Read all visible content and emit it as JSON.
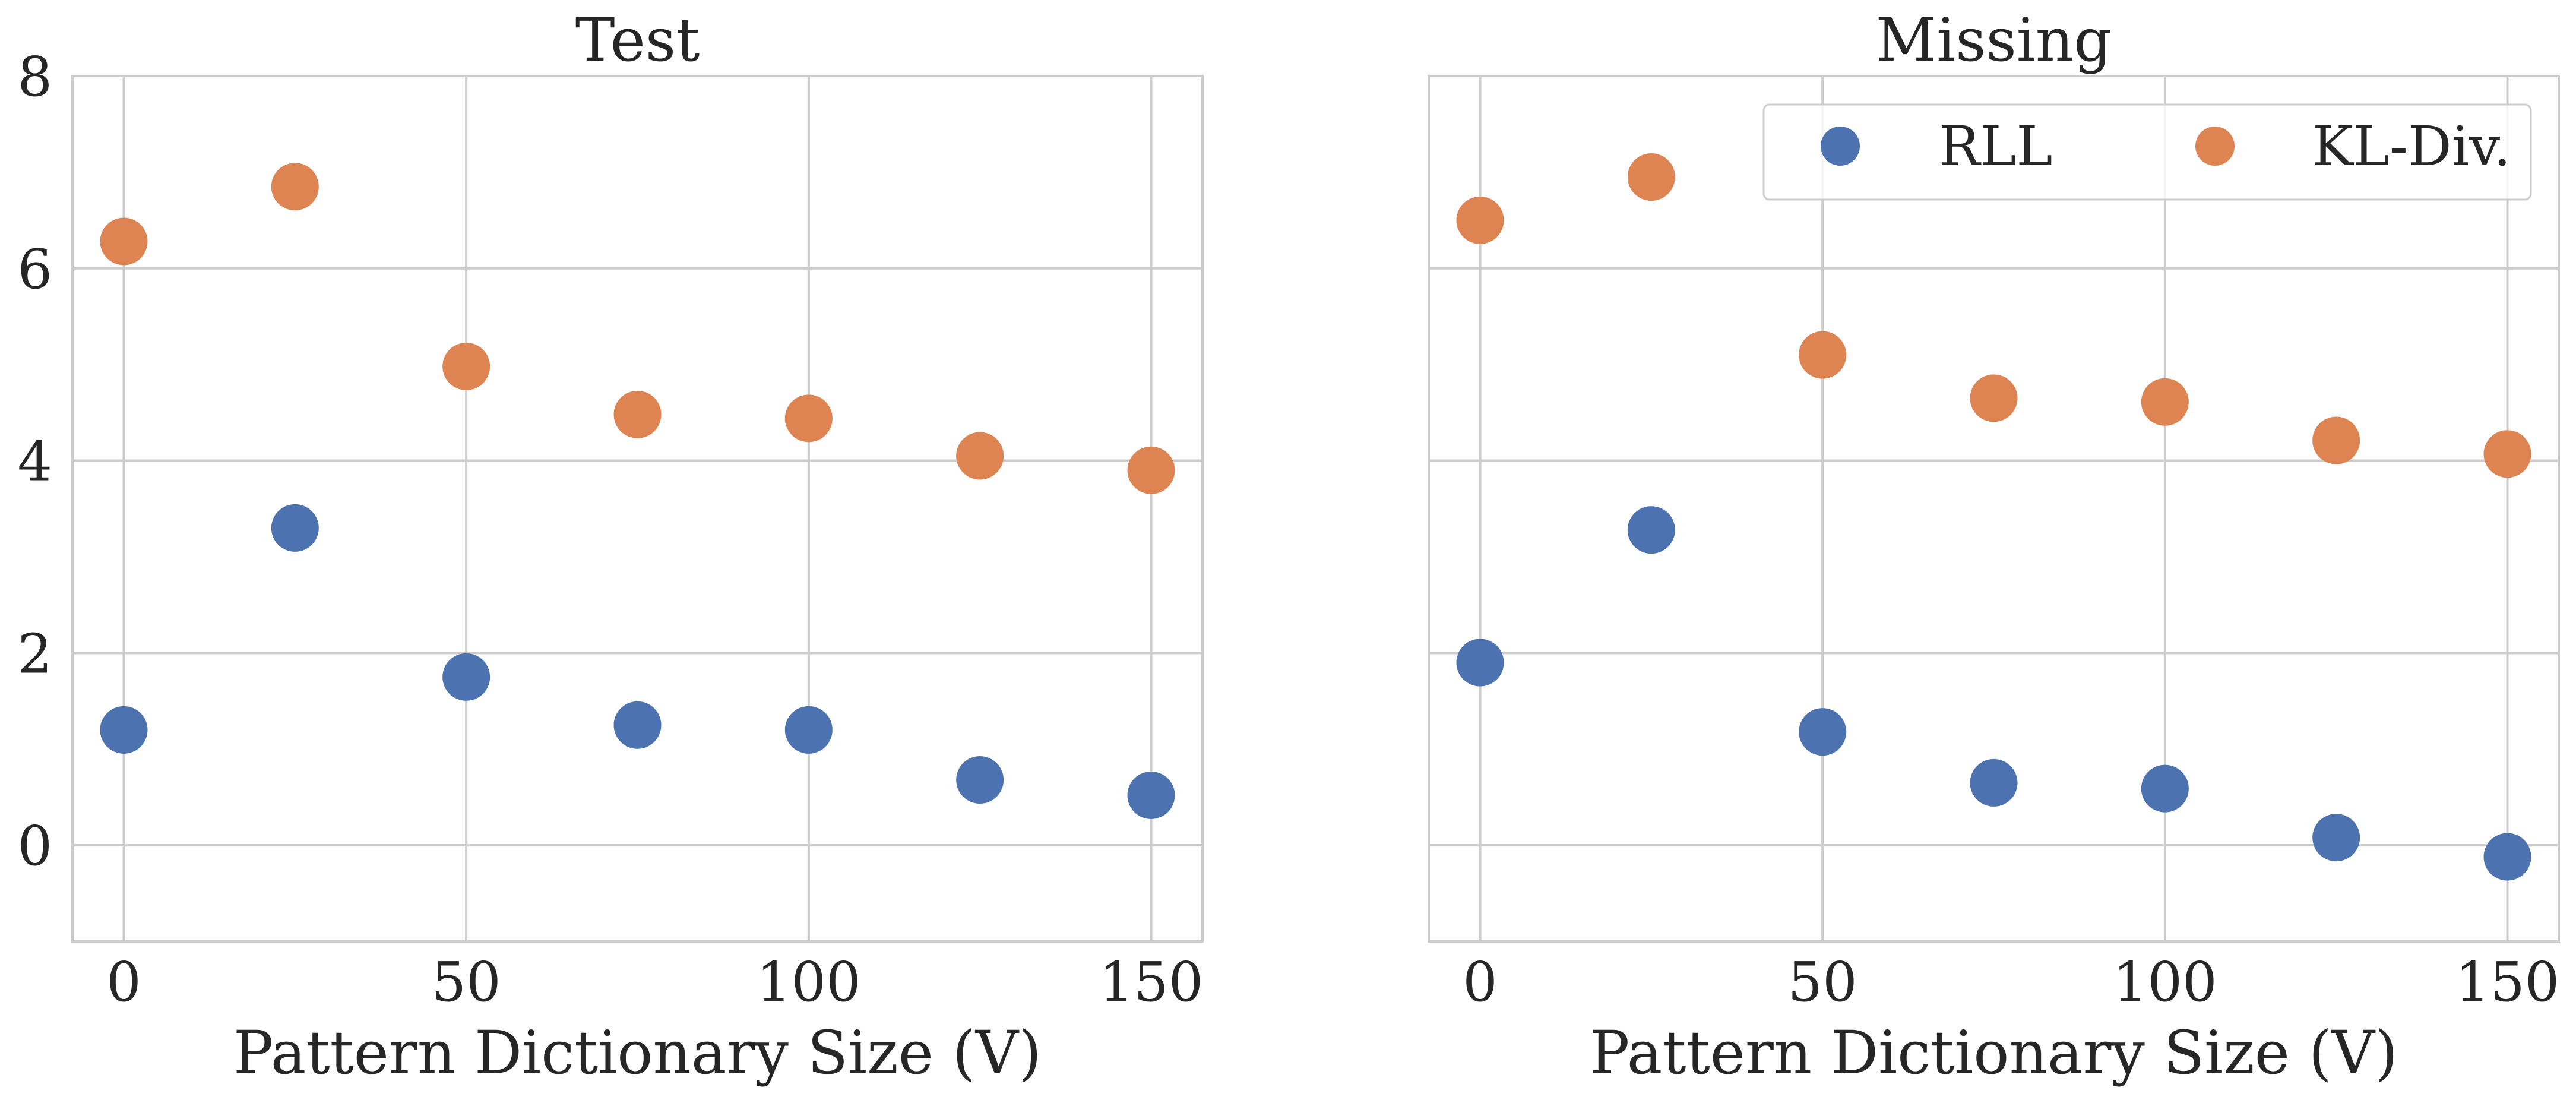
{
  "chart_data": [
    {
      "type": "scatter",
      "title": "Test",
      "xlabel": "Pattern Dictionary Size (V)",
      "ylabel": "",
      "xlim": [
        -7.5,
        157.5
      ],
      "ylim": [
        -1,
        8
      ],
      "xticks": [
        0,
        50,
        100,
        150
      ],
      "yticks": [
        0,
        2,
        4,
        6,
        8
      ],
      "grid": true,
      "x": [
        0,
        25,
        50,
        75,
        100,
        125,
        150
      ],
      "series": [
        {
          "name": "RLL",
          "color": "#4c72b0",
          "values": [
            1.2,
            3.3,
            1.75,
            1.25,
            1.2,
            0.68,
            0.52
          ]
        },
        {
          "name": "KL-Div.",
          "color": "#dd8452",
          "values": [
            6.28,
            6.85,
            4.98,
            4.48,
            4.44,
            4.05,
            3.9
          ]
        }
      ]
    },
    {
      "type": "scatter",
      "title": "Missing",
      "xlabel": "Pattern Dictionary Size (V)",
      "ylabel": "",
      "xlim": [
        -7.5,
        157.5
      ],
      "ylim": [
        -1,
        8
      ],
      "xticks": [
        0,
        50,
        100,
        150
      ],
      "yticks": [
        0,
        2,
        4,
        6,
        8
      ],
      "grid": true,
      "legend": {
        "position": "top-right",
        "entries": [
          "RLL",
          "KL-Div."
        ]
      },
      "x": [
        0,
        25,
        50,
        75,
        100,
        125,
        150
      ],
      "series": [
        {
          "name": "RLL",
          "color": "#4c72b0",
          "values": [
            1.9,
            3.28,
            1.18,
            0.65,
            0.59,
            0.08,
            -0.12
          ]
        },
        {
          "name": "KL-Div.",
          "color": "#dd8452",
          "values": [
            6.5,
            6.95,
            5.1,
            4.65,
            4.61,
            4.21,
            4.07
          ]
        }
      ]
    }
  ]
}
